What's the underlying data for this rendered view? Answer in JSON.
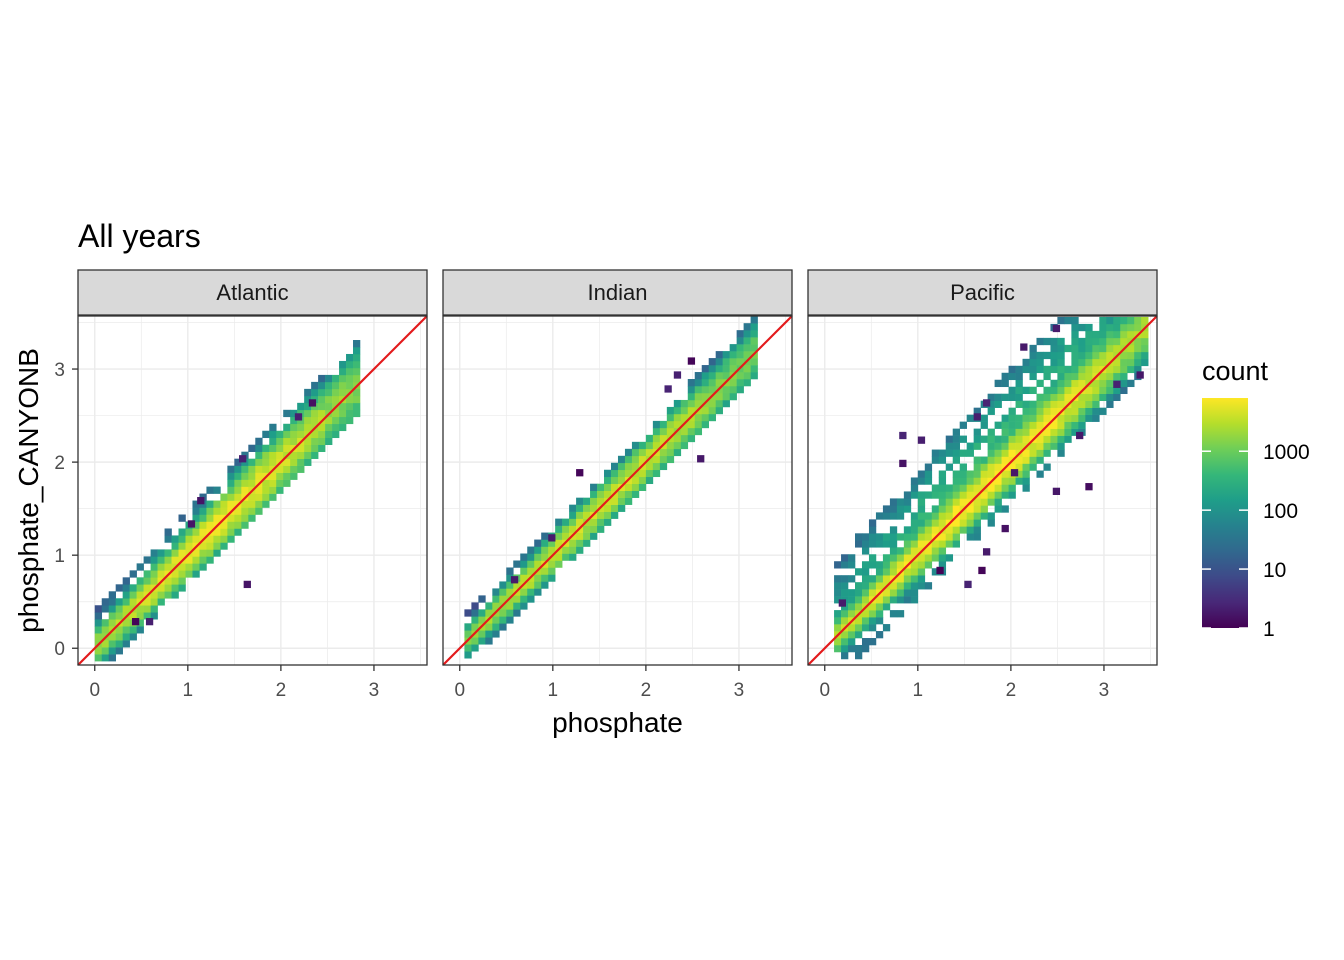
{
  "chart_data": {
    "type": "heatmap",
    "subtype": "2d-binned-density-faceted",
    "title": "All years",
    "xlabel": "phosphate",
    "ylabel": "phosphate_CANYONB",
    "xlim": [
      -0.18,
      3.57
    ],
    "ylim": [
      -0.18,
      3.57
    ],
    "x_ticks": [
      0,
      1,
      2,
      3
    ],
    "y_ticks": [
      0,
      1,
      2,
      3
    ],
    "x_tick_labels": [
      "0",
      "1",
      "2",
      "3"
    ],
    "y_tick_labels": [
      "0",
      "1",
      "2",
      "3"
    ],
    "grid": true,
    "reference_line": {
      "slope": 1,
      "intercept": 0,
      "color": "#e31a1c"
    },
    "bin_width": 0.075,
    "color_scale": {
      "name": "viridis",
      "transform": "log10",
      "legend_title": "count",
      "breaks": [
        1,
        10,
        100,
        1000
      ],
      "break_labels": [
        "1",
        "10",
        "100",
        "1000"
      ],
      "limits": [
        1,
        8000
      ],
      "colors": [
        "#440154",
        "#482878",
        "#3e4a89",
        "#31688e",
        "#26828e",
        "#1f9e89",
        "#35b779",
        "#6ece58",
        "#b5de2b",
        "#fde725"
      ]
    },
    "legend_position": "right",
    "facets": [
      {
        "name": "Atlantic",
        "x_range": [
          0.0,
          2.7
        ],
        "core_spread": 0.12,
        "outer_spread": 0.28,
        "upper_bias": 0.08,
        "peak_count": 6000,
        "outliers": [
          [
            1.6,
            0.65
          ],
          [
            1.55,
            2.0
          ],
          [
            0.4,
            0.25
          ],
          [
            0.55,
            0.25
          ],
          [
            1.0,
            1.3
          ],
          [
            1.1,
            1.55
          ],
          [
            2.3,
            2.6
          ],
          [
            2.15,
            2.45
          ]
        ]
      },
      {
        "name": "Indian",
        "x_range": [
          0.05,
          3.1
        ],
        "core_spread": 0.1,
        "outer_spread": 0.22,
        "upper_bias": 0.04,
        "peak_count": 4000,
        "outliers": [
          [
            2.45,
            3.05
          ],
          [
            2.3,
            2.9
          ],
          [
            2.2,
            2.75
          ],
          [
            1.25,
            1.85
          ],
          [
            2.55,
            2.0
          ],
          [
            0.95,
            1.15
          ],
          [
            0.55,
            0.7
          ]
        ]
      },
      {
        "name": "Pacific",
        "x_range": [
          0.1,
          3.4
        ],
        "core_spread": 0.11,
        "outer_spread": 0.55,
        "upper_bias": 0.32,
        "peak_count": 8000,
        "outliers": [
          [
            2.45,
            3.4
          ],
          [
            2.1,
            3.2
          ],
          [
            0.8,
            2.25
          ],
          [
            1.0,
            2.2
          ],
          [
            0.8,
            1.95
          ],
          [
            1.7,
            2.6
          ],
          [
            1.6,
            2.45
          ],
          [
            3.1,
            2.8
          ],
          [
            3.35,
            2.9
          ],
          [
            2.45,
            1.65
          ],
          [
            2.8,
            1.7
          ],
          [
            1.9,
            1.25
          ],
          [
            1.7,
            1.0
          ],
          [
            1.2,
            0.8
          ],
          [
            1.5,
            0.65
          ],
          [
            0.15,
            0.45
          ],
          [
            2.7,
            2.25
          ],
          [
            2.0,
            1.85
          ],
          [
            1.65,
            0.8
          ]
        ]
      }
    ]
  }
}
